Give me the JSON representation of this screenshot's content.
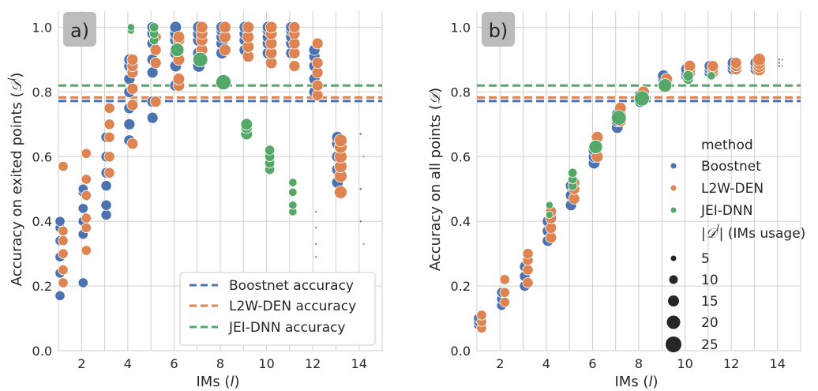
{
  "colors": {
    "Boostnet": "#4c72b0",
    "L2W-DEN": "#dd8452",
    "JEI-DNN": "#55a868",
    "grid": "#d0d0d0",
    "panel_label_bg": "#bcbcbc"
  },
  "chart_data": [
    {
      "type": "scatter",
      "panel_label": "a)",
      "xlabel": "IMs (l)",
      "ylabel": "Accuracy on exited points (D^l)",
      "xlim": [
        1,
        15
      ],
      "ylim": [
        0,
        1.05
      ],
      "xticks": [
        "2",
        "4",
        "6",
        "8",
        "10",
        "12",
        "14"
      ],
      "yticks": [
        "0.0",
        "0.2",
        "0.4",
        "0.6",
        "0.8",
        "1.0"
      ],
      "grid": true,
      "legend": {
        "placement": "lower-right",
        "entries": [
          {
            "label": "Boostnet accuracy",
            "color": "#4c72b0"
          },
          {
            "label": "L2W-DEN accuracy",
            "color": "#dd8452"
          },
          {
            "label": "JEI-DNN accuracy",
            "color": "#55a868"
          }
        ]
      },
      "hlines": [
        {
          "series": "Boostnet",
          "y": 0.772
        },
        {
          "series": "L2W-DEN",
          "y": 0.783
        },
        {
          "series": "JEI-DNN",
          "y": 0.82
        }
      ],
      "series": [
        {
          "name": "Boostnet",
          "points": [
            {
              "x": 1,
              "ys": [
                0.17,
                0.24,
                0.29,
                0.34,
                0.38,
                0.4
              ],
              "size": 5
            },
            {
              "x": 2,
              "ys": [
                0.21,
                0.36,
                0.4,
                0.44,
                0.49,
                0.5
              ],
              "size": 5
            },
            {
              "x": 3,
              "ys": [
                0.42,
                0.45,
                0.51,
                0.55,
                0.6,
                0.66
              ],
              "size": 6
            },
            {
              "x": 4,
              "ys": [
                0.65,
                0.7,
                0.75,
                0.8,
                0.84,
                0.88,
                0.9
              ],
              "size": 7
            },
            {
              "x": 5,
              "ys": [
                0.72,
                0.77,
                0.86,
                0.9,
                0.95,
                0.98,
                1.0
              ],
              "size": 7
            },
            {
              "x": 6,
              "ys": [
                0.82,
                0.88,
                0.92,
                0.96,
                0.98,
                1.0
              ],
              "size": 8
            },
            {
              "x": 7,
              "ys": [
                0.88,
                0.92,
                0.96,
                0.98,
                1.0
              ],
              "size": 9
            },
            {
              "x": 8,
              "ys": [
                0.92,
                0.95,
                0.97,
                0.99,
                1.0
              ],
              "size": 8
            },
            {
              "x": 9,
              "ys": [
                0.93,
                0.96,
                0.98,
                1.0
              ],
              "size": 8
            },
            {
              "x": 10,
              "ys": [
                0.92,
                0.95,
                0.97,
                0.99,
                1.0
              ],
              "size": 8
            },
            {
              "x": 11,
              "ys": [
                0.92,
                0.95,
                0.97,
                0.99,
                1.0
              ],
              "size": 7
            },
            {
              "x": 12,
              "ys": [
                0.8,
                0.84,
                0.88,
                0.91,
                0.93
              ],
              "size": 7
            },
            {
              "x": 13,
              "ys": [
                0.52,
                0.56,
                0.6,
                0.64,
                0.66
              ],
              "size": 8
            },
            {
              "x": 14,
              "ys": [
                0.67,
                0.5,
                0.4
              ],
              "size": 1
            }
          ]
        },
        {
          "name": "L2W-DEN",
          "points": [
            {
              "x": 1,
              "ys": [
                0.21,
                0.25,
                0.3,
                0.34,
                0.37,
                0.57
              ],
              "size": 5
            },
            {
              "x": 2,
              "ys": [
                0.31,
                0.38,
                0.41,
                0.48,
                0.53,
                0.61
              ],
              "size": 5
            },
            {
              "x": 3,
              "ys": [
                0.55,
                0.6,
                0.66,
                0.7,
                0.75
              ],
              "size": 6
            },
            {
              "x": 4,
              "ys": [
                0.64,
                0.76,
                0.81,
                0.86,
                0.88,
                0.9
              ],
              "size": 7
            },
            {
              "x": 5,
              "ys": [
                0.77,
                0.89,
                0.93,
                0.97
              ],
              "size": 7
            },
            {
              "x": 6,
              "ys": [
                0.82,
                0.84,
                0.9,
                0.96,
                0.97
              ],
              "size": 8
            },
            {
              "x": 7,
              "ys": [
                0.9,
                0.93,
                0.96,
                0.98,
                1.0
              ],
              "size": 8
            },
            {
              "x": 8,
              "ys": [
                0.93,
                0.97,
                1.0
              ],
              "size": 8
            },
            {
              "x": 9,
              "ys": [
                0.91,
                0.94,
                0.97,
                1.0
              ],
              "size": 8
            },
            {
              "x": 10,
              "ys": [
                0.89,
                0.92,
                0.95,
                0.98,
                1.0
              ],
              "size": 8
            },
            {
              "x": 11,
              "ys": [
                0.88,
                0.92,
                0.95,
                0.98,
                1.0
              ],
              "size": 7
            },
            {
              "x": 12,
              "ys": [
                0.79,
                0.82,
                0.86,
                0.89,
                0.95
              ],
              "size": 7
            },
            {
              "x": 13,
              "ys": [
                0.49,
                0.54,
                0.57,
                0.6,
                0.63,
                0.65
              ],
              "size": 10
            },
            {
              "x": 14,
              "ys": [
                0.33,
                0.6
              ],
              "size": 1
            }
          ]
        },
        {
          "name": "JEI-DNN",
          "points": [
            {
              "x": 4,
              "ys": [
                0.99,
                1.0
              ],
              "size": 2
            },
            {
              "x": 5,
              "ys": [
                0.96,
                0.98,
                1.0
              ],
              "size": 4
            },
            {
              "x": 6,
              "ys": [
                0.93
              ],
              "size": 12
            },
            {
              "x": 7,
              "ys": [
                0.9
              ],
              "size": 15
            },
            {
              "x": 8,
              "ys": [
                0.83
              ],
              "size": 16
            },
            {
              "x": 9,
              "ys": [
                0.67,
                0.69,
                0.7
              ],
              "size": 8
            },
            {
              "x": 10,
              "ys": [
                0.56,
                0.58,
                0.6,
                0.62
              ],
              "size": 5
            },
            {
              "x": 11,
              "ys": [
                0.43,
                0.45,
                0.49,
                0.52
              ],
              "size": 3
            },
            {
              "x": 12,
              "ys": [
                0.29,
                0.33,
                0.38,
                0.43
              ],
              "size": 1
            }
          ]
        }
      ]
    },
    {
      "type": "scatter",
      "panel_label": "b)",
      "xlabel": "IMs (l)",
      "ylabel": "Accuracy on all points (D)",
      "xlim": [
        1,
        15
      ],
      "ylim": [
        0,
        1.05
      ],
      "xticks": [
        "2",
        "4",
        "6",
        "8",
        "10",
        "12",
        "14"
      ],
      "yticks": [
        "0.0",
        "0.2",
        "0.4",
        "0.6",
        "0.8",
        "1.0"
      ],
      "grid": true,
      "legend": {
        "placement": "center-right",
        "title": "method",
        "entries": [
          {
            "label": "Boostnet",
            "color": "#4c72b0"
          },
          {
            "label": "L2W-DEN",
            "color": "#dd8452"
          },
          {
            "label": "JEI-DNN",
            "color": "#55a868"
          }
        ],
        "size_title": "|D^l| (IMs usage)",
        "sizes": [
          "5",
          "10",
          "15",
          "20",
          "25"
        ]
      },
      "hlines": [
        {
          "series": "Boostnet",
          "y": 0.772
        },
        {
          "series": "L2W-DEN",
          "y": 0.783
        },
        {
          "series": "JEI-DNN",
          "y": 0.82
        }
      ],
      "series": [
        {
          "name": "Boostnet",
          "points": [
            {
              "x": 1,
              "ys": [
                0.08,
                0.09,
                0.1
              ],
              "size": 5
            },
            {
              "x": 2,
              "ys": [
                0.14,
                0.16,
                0.18
              ],
              "size": 5
            },
            {
              "x": 3,
              "ys": [
                0.2,
                0.23,
                0.26
              ],
              "size": 6
            },
            {
              "x": 4,
              "ys": [
                0.34,
                0.37,
                0.4
              ],
              "size": 7
            },
            {
              "x": 5,
              "ys": [
                0.45,
                0.48,
                0.51
              ],
              "size": 7
            },
            {
              "x": 6,
              "ys": [
                0.58,
                0.6,
                0.62
              ],
              "size": 8
            },
            {
              "x": 7,
              "ys": [
                0.69,
                0.71,
                0.73
              ],
              "size": 8
            },
            {
              "x": 8,
              "ys": [
                0.77,
                0.79
              ],
              "size": 8
            },
            {
              "x": 9,
              "ys": [
                0.82,
                0.84,
                0.85
              ],
              "size": 8
            },
            {
              "x": 10,
              "ys": [
                0.85,
                0.86,
                0.87
              ],
              "size": 8
            },
            {
              "x": 11,
              "ys": [
                0.86,
                0.87,
                0.88
              ],
              "size": 7
            },
            {
              "x": 12,
              "ys": [
                0.87,
                0.88,
                0.89
              ],
              "size": 7
            },
            {
              "x": 13,
              "ys": [
                0.87,
                0.88,
                0.89
              ],
              "size": 8
            },
            {
              "x": 14,
              "ys": [
                0.88,
                0.89,
                0.9
              ],
              "size": 1
            }
          ]
        },
        {
          "name": "L2W-DEN",
          "points": [
            {
              "x": 1,
              "ys": [
                0.07,
                0.09,
                0.11
              ],
              "size": 5
            },
            {
              "x": 2,
              "ys": [
                0.15,
                0.18,
                0.22
              ],
              "size": 5
            },
            {
              "x": 3,
              "ys": [
                0.21,
                0.25,
                0.28,
                0.3
              ],
              "size": 6
            },
            {
              "x": 4,
              "ys": [
                0.35,
                0.38,
                0.41,
                0.43
              ],
              "size": 7
            },
            {
              "x": 5,
              "ys": [
                0.47,
                0.5,
                0.52
              ],
              "size": 7
            },
            {
              "x": 6,
              "ys": [
                0.6,
                0.63,
                0.66
              ],
              "size": 8
            },
            {
              "x": 7,
              "ys": [
                0.71,
                0.73,
                0.75
              ],
              "size": 8
            },
            {
              "x": 8,
              "ys": [
                0.78,
                0.8
              ],
              "size": 8
            },
            {
              "x": 9,
              "ys": [
                0.83,
                0.84
              ],
              "size": 8
            },
            {
              "x": 10,
              "ys": [
                0.86,
                0.87,
                0.88
              ],
              "size": 8
            },
            {
              "x": 11,
              "ys": [
                0.86,
                0.87,
                0.88
              ],
              "size": 7
            },
            {
              "x": 12,
              "ys": [
                0.87,
                0.88,
                0.89
              ],
              "size": 7
            },
            {
              "x": 13,
              "ys": [
                0.87,
                0.88,
                0.89,
                0.9
              ],
              "size": 10
            },
            {
              "x": 14,
              "ys": [
                0.88,
                0.9
              ],
              "size": 1
            }
          ]
        },
        {
          "name": "JEI-DNN",
          "points": [
            {
              "x": 4,
              "ys": [
                0.42,
                0.45
              ],
              "size": 2
            },
            {
              "x": 5,
              "ys": [
                0.51,
                0.53,
                0.55
              ],
              "size": 4
            },
            {
              "x": 6,
              "ys": [
                0.63
              ],
              "size": 12
            },
            {
              "x": 7,
              "ys": [
                0.72
              ],
              "size": 15
            },
            {
              "x": 8,
              "ys": [
                0.78
              ],
              "size": 16
            },
            {
              "x": 9,
              "ys": [
                0.82
              ],
              "size": 12
            },
            {
              "x": 10,
              "ys": [
                0.84,
                0.85
              ],
              "size": 6
            },
            {
              "x": 11,
              "ys": [
                0.85
              ],
              "size": 3
            },
            {
              "x": 12,
              "ys": [
                0.87
              ],
              "size": 1
            }
          ]
        }
      ]
    }
  ]
}
